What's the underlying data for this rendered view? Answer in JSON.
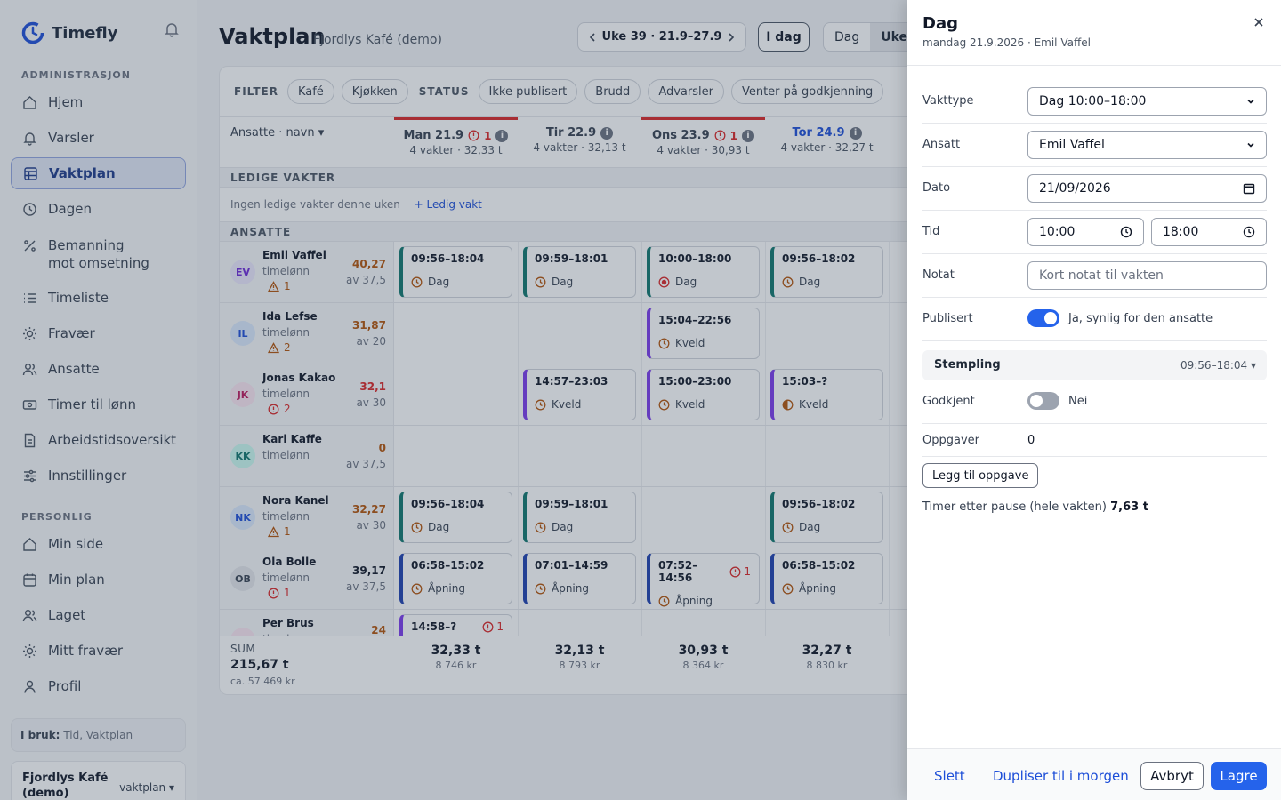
{
  "app": {
    "name": "Timefly"
  },
  "sidebar": {
    "admin_label": "ADMINISTRASJON",
    "personal_label": "PERSONLIG",
    "admin_items": [
      {
        "label": "Hjem",
        "icon": "home-icon"
      },
      {
        "label": "Varsler",
        "icon": "bell-icon"
      },
      {
        "label": "Vaktplan",
        "icon": "calendar-grid-icon"
      },
      {
        "label": "Dagen",
        "icon": "clock-icon"
      },
      {
        "label": "Bemanning",
        "label2": "mot omsetning",
        "icon": "percent-icon"
      },
      {
        "label": "Timeliste",
        "icon": "list-icon"
      },
      {
        "label": "Fravær",
        "icon": "sun-icon"
      },
      {
        "label": "Ansatte",
        "icon": "users-icon"
      },
      {
        "label": "Timer til lønn",
        "icon": "money-icon"
      },
      {
        "label": "Arbeidstidsoversikt",
        "icon": "document-icon"
      },
      {
        "label": "Innstillinger",
        "icon": "sliders-icon"
      }
    ],
    "personal_items": [
      {
        "label": "Min side",
        "icon": "home-icon"
      },
      {
        "label": "Min plan",
        "icon": "calendar-icon"
      },
      {
        "label": "Laget",
        "icon": "users-icon"
      },
      {
        "label": "Mitt fravær",
        "icon": "sun-icon"
      },
      {
        "label": "Profil",
        "icon": "user-icon"
      }
    ],
    "in_use_label": "I bruk:",
    "in_use_value": "Tid, Vaktplan",
    "company_name": "Fjordlys Kafé (demo)",
    "company_mode": "vaktplan ▾"
  },
  "header": {
    "title": "Vaktplan",
    "subtitle": "Fjordlys Kafé (demo)",
    "week_label": "Uke 39 · 21.9–27.9",
    "today": "I dag",
    "view_day": "Dag",
    "view_week": "Uke"
  },
  "filters": {
    "filter_label": "FILTER",
    "status_label": "STATUS",
    "chips": [
      "Kafé",
      "Kjøkken"
    ],
    "status_chips": [
      "Ikke publisert",
      "Brudd",
      "Advarsler",
      "Venter på godkjenning"
    ]
  },
  "grid": {
    "employee_header": "Ansatte · navn ▾",
    "days": [
      {
        "name": "Man 21.9",
        "errors": "1",
        "sub": "4 vakter · 32,33 t",
        "alert": true,
        "current": false
      },
      {
        "name": "Tir 22.9",
        "errors": "",
        "sub": "4 vakter · 32,13 t",
        "alert": false,
        "current": false
      },
      {
        "name": "Ons 23.9",
        "errors": "1",
        "sub": "4 vakter · 30,93 t",
        "alert": true,
        "current": false
      },
      {
        "name": "Tor 24.9",
        "errors": "",
        "sub": "4 vakter · 32,27 t",
        "alert": false,
        "current": true
      }
    ],
    "open_shifts_label": "LEDIGE VAKTER",
    "open_shifts_empty": "Ingen ledige vakter denne uken",
    "add_open_shift": "+ Ledig vakt",
    "employees_label": "ANSATTE",
    "employees": [
      {
        "initials": "EV",
        "name": "Emil Vaffel",
        "type": "timelønn",
        "warn_kind": "warning",
        "warn_count": "1",
        "hours": "40,27",
        "hours_color": "#b45309",
        "capacity": "av 37,5",
        "avatar_bg": "#ede9fe",
        "avatar_fg": "#6d28d9"
      },
      {
        "initials": "IL",
        "name": "Ida Lefse",
        "type": "timelønn",
        "warn_kind": "warning",
        "warn_count": "2",
        "hours": "31,87",
        "hours_color": "#b45309",
        "capacity": "av 20",
        "avatar_bg": "#dbeafe",
        "avatar_fg": "#1d4ed8"
      },
      {
        "initials": "JK",
        "name": "Jonas Kakao",
        "type": "timelønn",
        "warn_kind": "error",
        "warn_count": "2",
        "hours": "32,1",
        "hours_color": "#dc2626",
        "capacity": "av 30",
        "avatar_bg": "#fce7f3",
        "avatar_fg": "#be185d"
      },
      {
        "initials": "KK",
        "name": "Kari Kaffe",
        "type": "timelønn",
        "warn_kind": "",
        "warn_count": "",
        "hours": "0",
        "hours_color": "#b45309",
        "capacity": "av 37,5",
        "avatar_bg": "#ccfbf1",
        "avatar_fg": "#0f766e"
      },
      {
        "initials": "NK",
        "name": "Nora Kanel",
        "type": "timelønn",
        "warn_kind": "warning",
        "warn_count": "1",
        "hours": "32,27",
        "hours_color": "#b45309",
        "capacity": "av 30",
        "avatar_bg": "#dbeafe",
        "avatar_fg": "#1d4ed8"
      },
      {
        "initials": "OB",
        "name": "Ola Bolle",
        "type": "timelønn",
        "warn_kind": "error",
        "warn_count": "1",
        "hours": "39,17",
        "hours_color": "#111827",
        "capacity": "av 37,5",
        "avatar_bg": "#e5e7eb",
        "avatar_fg": "#374151"
      },
      {
        "initials": "PB",
        "name": "Per Brus",
        "type": "timelønn",
        "warn_kind": "",
        "warn_count": "",
        "hours": "24",
        "hours_color": "#b45309",
        "capacity": "",
        "avatar_bg": "#fce7f3",
        "avatar_fg": "#be185d"
      }
    ],
    "shifts": [
      [
        {
          "time": "09:56–18:04",
          "type": "Dag",
          "kind": "dag",
          "icon": "clock-icon",
          "err": ""
        },
        {
          "time": "09:59–18:01",
          "type": "Dag",
          "kind": "dag",
          "icon": "clock-icon",
          "err": ""
        },
        {
          "time": "10:00–18:00",
          "type": "Dag",
          "kind": "dag",
          "icon": "target-icon",
          "err": ""
        },
        {
          "time": "09:56–18:02",
          "type": "Dag",
          "kind": "dag",
          "icon": "clock-icon",
          "err": ""
        }
      ],
      [
        null,
        null,
        {
          "time": "15:04–22:56",
          "type": "Kveld",
          "kind": "kveld",
          "icon": "clock-icon",
          "err": ""
        },
        null
      ],
      [
        null,
        {
          "time": "14:57–23:03",
          "type": "Kveld",
          "kind": "kveld",
          "icon": "clock-icon",
          "err": ""
        },
        {
          "time": "15:00–23:00",
          "type": "Kveld",
          "kind": "kveld",
          "icon": "clock-icon",
          "err": ""
        },
        {
          "time": "15:03–?",
          "type": "Kveld",
          "kind": "kveld",
          "icon": "half-circle-icon",
          "err": ""
        }
      ],
      [
        null,
        null,
        null,
        null
      ],
      [
        {
          "time": "09:56–18:04",
          "type": "Dag",
          "kind": "dag",
          "icon": "clock-icon",
          "err": ""
        },
        {
          "time": "09:59–18:01",
          "type": "Dag",
          "kind": "dag",
          "icon": "clock-icon",
          "err": ""
        },
        null,
        {
          "time": "09:56–18:02",
          "type": "Dag",
          "kind": "dag",
          "icon": "clock-icon",
          "err": ""
        }
      ],
      [
        {
          "time": "06:58–15:02",
          "type": "Åpning",
          "kind": "apning",
          "icon": "clock-icon",
          "err": ""
        },
        {
          "time": "07:01–14:59",
          "type": "Åpning",
          "kind": "apning",
          "icon": "clock-icon",
          "err": ""
        },
        {
          "time": "07:52–14:56",
          "type": "Åpning",
          "kind": "apning",
          "icon": "clock-icon",
          "err": "1"
        },
        {
          "time": "06:58–15:02",
          "type": "Åpning",
          "kind": "apning",
          "icon": "clock-icon",
          "err": ""
        }
      ],
      [
        {
          "time": "14:58–?",
          "type": "",
          "kind": "kveld",
          "icon": "clock-icon",
          "err": "1"
        },
        null,
        null,
        null
      ]
    ],
    "sum": {
      "label": "SUM",
      "total": "215,67 t",
      "total_kr": "ca. 57 469 kr",
      "days": [
        {
          "hours": "32,33 t",
          "kr": "8 746 kr"
        },
        {
          "hours": "32,13 t",
          "kr": "8 793 kr"
        },
        {
          "hours": "30,93 t",
          "kr": "8 364 kr"
        },
        {
          "hours": "32,27 t",
          "kr": "8 830 kr"
        }
      ]
    }
  },
  "drawer": {
    "title": "Dag",
    "subtitle": "mandag 21.9.2026 · Emil Vaffel",
    "fields": {
      "shift_type_label": "Vakttype",
      "shift_type_value": "Dag 10:00–18:00",
      "employee_label": "Ansatt",
      "employee_value": "Emil Vaffel",
      "date_label": "Dato",
      "date_value": "21/09/2026",
      "time_label": "Tid",
      "time_start": "10:00",
      "time_end": "18:00",
      "note_label": "Notat",
      "note_placeholder": "Kort notat til vakten",
      "published_label": "Publisert",
      "published_text": "Ja, synlig for den ansatte",
      "stamp_label": "Stempling",
      "stamp_value": "09:56–18:04 ▾",
      "approved_label": "Godkjent",
      "approved_text": "Nei",
      "tasks_label": "Oppgaver",
      "tasks_value": "0"
    },
    "add_task": "Legg til oppgave",
    "hours_label": "Timer etter pause (hele vakten)",
    "hours_value": "7,63 t",
    "delete": "Slett",
    "duplicate": "Dupliser til i morgen",
    "cancel": "Avbryt",
    "save": "Lagre"
  },
  "colors": {
    "accent": "#2563eb",
    "alert": "#dc2626",
    "warning": "#b45309"
  }
}
